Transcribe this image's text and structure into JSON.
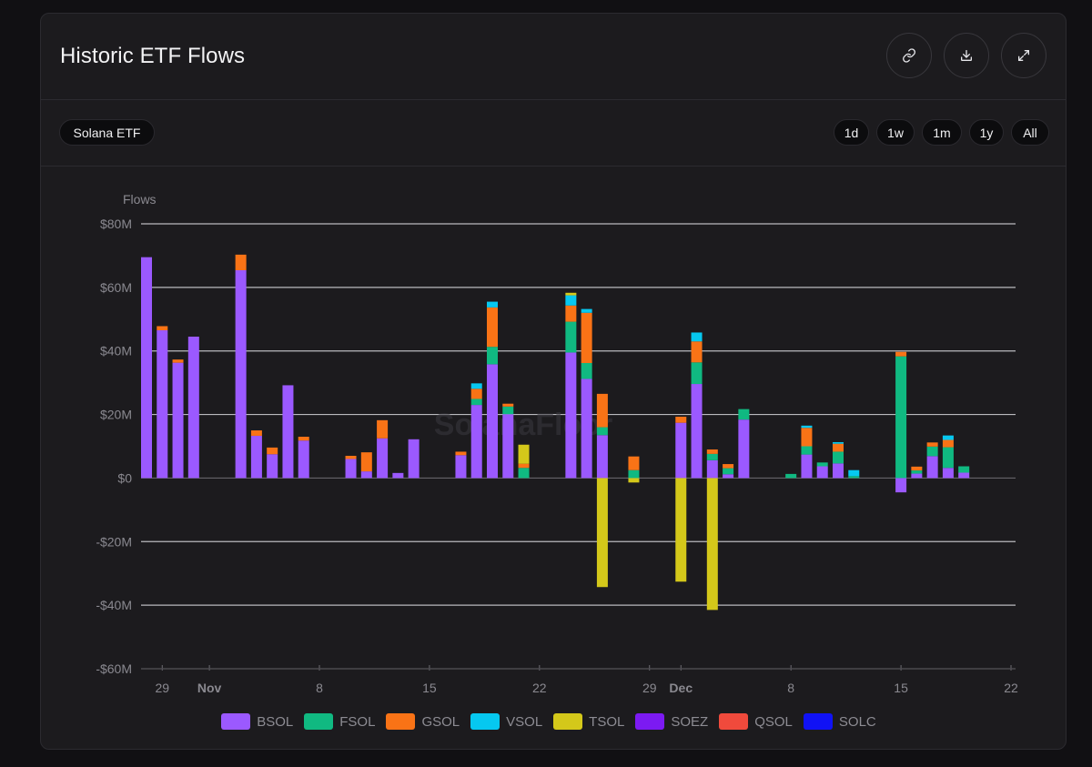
{
  "header": {
    "title": "Historic ETF Flows",
    "icons": [
      "link-icon",
      "download-icon",
      "expand-icon"
    ]
  },
  "filters": {
    "asset_label": "Solana ETF",
    "ranges": [
      "1d",
      "1w",
      "1m",
      "1y",
      "All"
    ],
    "active_range": "All"
  },
  "watermark": "SolanaFloor",
  "colors": {
    "BSOL": "#9B59FF",
    "FSOL": "#10B981",
    "GSOL": "#F97316",
    "VSOL": "#06C8F0",
    "TSOL": "#D4C81A",
    "SOEZ": "#7C1AF2",
    "QSOL": "#F04A3C",
    "SOLC": "#1012F5"
  },
  "chart_data": {
    "type": "bar",
    "stacked": true,
    "ylabel": "Flows",
    "ylim": [
      -60,
      80
    ],
    "yticks": [
      80,
      60,
      40,
      20,
      0,
      -20,
      -40,
      -60
    ],
    "ytick_labels": [
      "$80M",
      "$60M",
      "$40M",
      "$20M",
      "$0",
      "-$20M",
      "-$40M",
      "-$60M"
    ],
    "grid": true,
    "legend_position": "bottom",
    "x_start": "2025-10-28",
    "x_end": "2025-12-22",
    "xticks": [
      {
        "date": "2025-10-29",
        "label": "29",
        "bold": false
      },
      {
        "date": "2025-11-01",
        "label": "Nov",
        "bold": true
      },
      {
        "date": "2025-11-08",
        "label": "8",
        "bold": false
      },
      {
        "date": "2025-11-15",
        "label": "15",
        "bold": false
      },
      {
        "date": "2025-11-22",
        "label": "22",
        "bold": false
      },
      {
        "date": "2025-11-29",
        "label": "29",
        "bold": false
      },
      {
        "date": "2025-12-01",
        "label": "Dec",
        "bold": true
      },
      {
        "date": "2025-12-08",
        "label": "8",
        "bold": false
      },
      {
        "date": "2025-12-15",
        "label": "15",
        "bold": false
      },
      {
        "date": "2025-12-22",
        "label": "22",
        "bold": false
      }
    ],
    "series_names": [
      "BSOL",
      "FSOL",
      "GSOL",
      "VSOL",
      "TSOL",
      "SOEZ",
      "QSOL",
      "SOLC"
    ],
    "points": [
      {
        "date": "2025-10-28",
        "BSOL": 69.5
      },
      {
        "date": "2025-10-29",
        "BSOL": 46.5,
        "GSOL": 1.3
      },
      {
        "date": "2025-10-30",
        "BSOL": 36.3,
        "GSOL": 1.0
      },
      {
        "date": "2025-10-31",
        "BSOL": 44.5
      },
      {
        "date": "2025-11-03",
        "BSOL": 65.4,
        "GSOL": 4.9
      },
      {
        "date": "2025-11-04",
        "BSOL": 13.3,
        "GSOL": 1.7
      },
      {
        "date": "2025-11-05",
        "BSOL": 7.5,
        "GSOL": 2.1
      },
      {
        "date": "2025-11-06",
        "BSOL": 29.2
      },
      {
        "date": "2025-11-07",
        "BSOL": 11.8,
        "GSOL": 1.2
      },
      {
        "date": "2025-11-10",
        "BSOL": 6.0,
        "GSOL": 1.0
      },
      {
        "date": "2025-11-11",
        "BSOL": 2.1,
        "GSOL": 6.0
      },
      {
        "date": "2025-11-12",
        "BSOL": 12.5,
        "GSOL": 5.7
      },
      {
        "date": "2025-11-13",
        "BSOL": 1.6
      },
      {
        "date": "2025-11-14",
        "BSOL": 12.2
      },
      {
        "date": "2025-11-17",
        "BSOL": 7.2,
        "GSOL": 1.1
      },
      {
        "date": "2025-11-18",
        "BSOL": 23.0,
        "FSOL": 1.9,
        "GSOL": 3.2,
        "VSOL": 1.7
      },
      {
        "date": "2025-11-19",
        "BSOL": 35.8,
        "FSOL": 5.5,
        "GSOL": 12.4,
        "VSOL": 1.8
      },
      {
        "date": "2025-11-20",
        "BSOL": 20.1,
        "FSOL": 2.4,
        "GSOL": 0.9
      },
      {
        "date": "2025-11-21",
        "FSOL": 3.2,
        "GSOL": 1.3,
        "TSOL": 6.0
      },
      {
        "date": "2025-11-24",
        "BSOL": 39.5,
        "FSOL": 9.7,
        "GSOL": 5.1,
        "VSOL": 3.2,
        "TSOL": 0.8
      },
      {
        "date": "2025-11-25",
        "BSOL": 31.2,
        "FSOL": 5.0,
        "GSOL": 15.8,
        "VSOL": 1.2
      },
      {
        "date": "2025-11-26",
        "BSOL": 13.5,
        "FSOL": 2.5,
        "GSOL": 10.5,
        "TSOL": -34.3
      },
      {
        "date": "2025-11-28",
        "FSOL": 2.5,
        "GSOL": 4.3,
        "TSOL": -1.4
      },
      {
        "date": "2025-12-01",
        "BSOL": 17.4,
        "GSOL": 1.9,
        "TSOL": -32.6
      },
      {
        "date": "2025-12-02",
        "BSOL": 29.6,
        "FSOL": 6.8,
        "GSOL": 6.6,
        "VSOL": 2.8
      },
      {
        "date": "2025-12-03",
        "BSOL": 5.6,
        "FSOL": 2.0,
        "GSOL": 1.4,
        "TSOL": -41.5
      },
      {
        "date": "2025-12-04",
        "BSOL": 1.2,
        "FSOL": 1.9,
        "GSOL": 1.3
      },
      {
        "date": "2025-12-05",
        "BSOL": 18.4,
        "FSOL": 3.3
      },
      {
        "date": "2025-12-08",
        "FSOL": 1.3
      },
      {
        "date": "2025-12-09",
        "BSOL": 7.4,
        "FSOL": 2.6,
        "GSOL": 5.8,
        "VSOL": 0.7
      },
      {
        "date": "2025-12-10",
        "BSOL": 3.7,
        "FSOL": 1.2
      },
      {
        "date": "2025-12-11",
        "BSOL": 4.6,
        "FSOL": 3.7,
        "GSOL": 2.5,
        "VSOL": 0.5
      },
      {
        "date": "2025-12-12",
        "FSOL": 0.6,
        "VSOL": 1.9
      },
      {
        "date": "2025-12-15",
        "BSOL": -4.5,
        "FSOL": 38.3,
        "GSOL": 1.4
      },
      {
        "date": "2025-12-16",
        "BSOL": 1.4,
        "FSOL": 1.0,
        "GSOL": 1.2
      },
      {
        "date": "2025-12-17",
        "BSOL": 6.9,
        "FSOL": 3.0,
        "GSOL": 1.3
      },
      {
        "date": "2025-12-18",
        "BSOL": 3.2,
        "FSOL": 6.5,
        "GSOL": 2.3,
        "VSOL": 1.4
      },
      {
        "date": "2025-12-19",
        "BSOL": 1.7,
        "FSOL": 2.0
      }
    ]
  }
}
